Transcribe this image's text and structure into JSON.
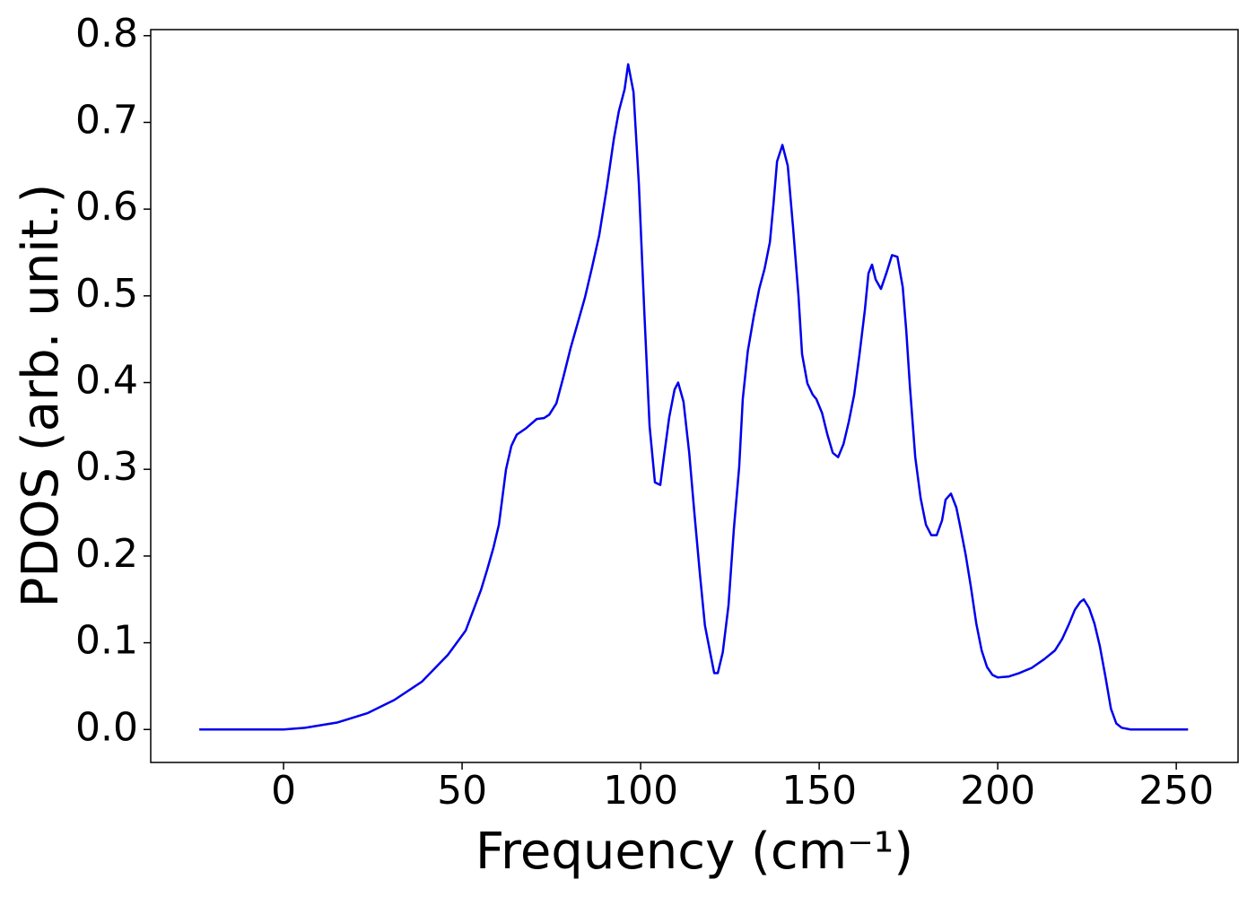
{
  "chart_data": {
    "type": "line",
    "xlabel": "Frequency (cm⁻¹)",
    "ylabel": "PDOS (arb. unit.)",
    "xlim": [
      -37.2,
      267.3
    ],
    "ylim": [
      -0.038,
      0.807
    ],
    "xticks": [
      0,
      50,
      100,
      150,
      200,
      250
    ],
    "yticks": [
      {
        "value": 0,
        "label": "0.0"
      },
      0.1,
      0.2,
      0.3,
      0.4,
      0.5,
      0.6,
      0.7,
      0.8
    ],
    "grid": false,
    "series": [
      {
        "name": "PDOS",
        "color": "#0000ee",
        "x": [
          -23.6,
          0,
          6,
          15,
          23.6,
          31,
          38.7,
          46,
          51,
          55.3,
          57,
          58.8,
          60.3,
          62.3,
          63.8,
          65.3,
          67.8,
          70.9,
          72.9,
          74.4,
          76.4,
          78.4,
          80.4,
          84.4,
          86.4,
          88.4,
          90.5,
          92.5,
          93.9,
          95.5,
          96.5,
          98,
          99.5,
          101,
          102.5,
          104,
          105.5,
          106.5,
          108,
          109.5,
          110.5,
          112,
          113.6,
          115,
          116.6,
          118,
          119.6,
          120.6,
          121.6,
          123,
          124.6,
          126.1,
          127.6,
          128.6,
          130,
          131.7,
          133.2,
          134.7,
          136.2,
          137.2,
          138.2,
          139.7,
          141.2,
          142.7,
          144.2,
          145.2,
          146.7,
          148.2,
          149.2,
          150.8,
          152.3,
          153.8,
          155.3,
          156.8,
          158.3,
          159.8,
          161.3,
          162.8,
          163.8,
          164.8,
          165.8,
          167.3,
          168.8,
          170.4,
          171.9,
          173.4,
          174.4,
          175.4,
          176.9,
          178.4,
          179.9,
          181.4,
          182.9,
          184.4,
          185.4,
          186.9,
          188.4,
          189.4,
          191,
          192.5,
          194,
          195.5,
          197,
          198.5,
          200,
          203,
          206,
          209.5,
          213,
          216,
          218,
          220,
          221.6,
          223.1,
          224.1,
          225.6,
          227.1,
          228.6,
          230.2,
          231.7,
          233.2,
          234.7,
          237.2,
          253.3
        ],
        "values": [
          0,
          0,
          0.002,
          0.008,
          0.019,
          0.034,
          0.055,
          0.086,
          0.114,
          0.161,
          0.184,
          0.21,
          0.236,
          0.3,
          0.327,
          0.34,
          0.347,
          0.358,
          0.359,
          0.363,
          0.376,
          0.407,
          0.44,
          0.498,
          0.533,
          0.57,
          0.624,
          0.681,
          0.713,
          0.738,
          0.767,
          0.735,
          0.629,
          0.484,
          0.35,
          0.285,
          0.282,
          0.314,
          0.36,
          0.392,
          0.4,
          0.378,
          0.319,
          0.252,
          0.179,
          0.12,
          0.086,
          0.065,
          0.065,
          0.089,
          0.143,
          0.231,
          0.303,
          0.381,
          0.436,
          0.477,
          0.508,
          0.531,
          0.562,
          0.606,
          0.655,
          0.674,
          0.65,
          0.578,
          0.5,
          0.433,
          0.399,
          0.386,
          0.381,
          0.365,
          0.34,
          0.319,
          0.314,
          0.329,
          0.355,
          0.386,
          0.433,
          0.484,
          0.526,
          0.536,
          0.519,
          0.508,
          0.526,
          0.547,
          0.545,
          0.51,
          0.459,
          0.396,
          0.314,
          0.267,
          0.236,
          0.224,
          0.224,
          0.241,
          0.265,
          0.272,
          0.256,
          0.236,
          0.202,
          0.164,
          0.122,
          0.091,
          0.072,
          0.063,
          0.06,
          0.061,
          0.065,
          0.071,
          0.081,
          0.091,
          0.104,
          0.122,
          0.138,
          0.147,
          0.15,
          0.14,
          0.122,
          0.096,
          0.06,
          0.024,
          0.007,
          0.002,
          0,
          0
        ]
      }
    ]
  }
}
